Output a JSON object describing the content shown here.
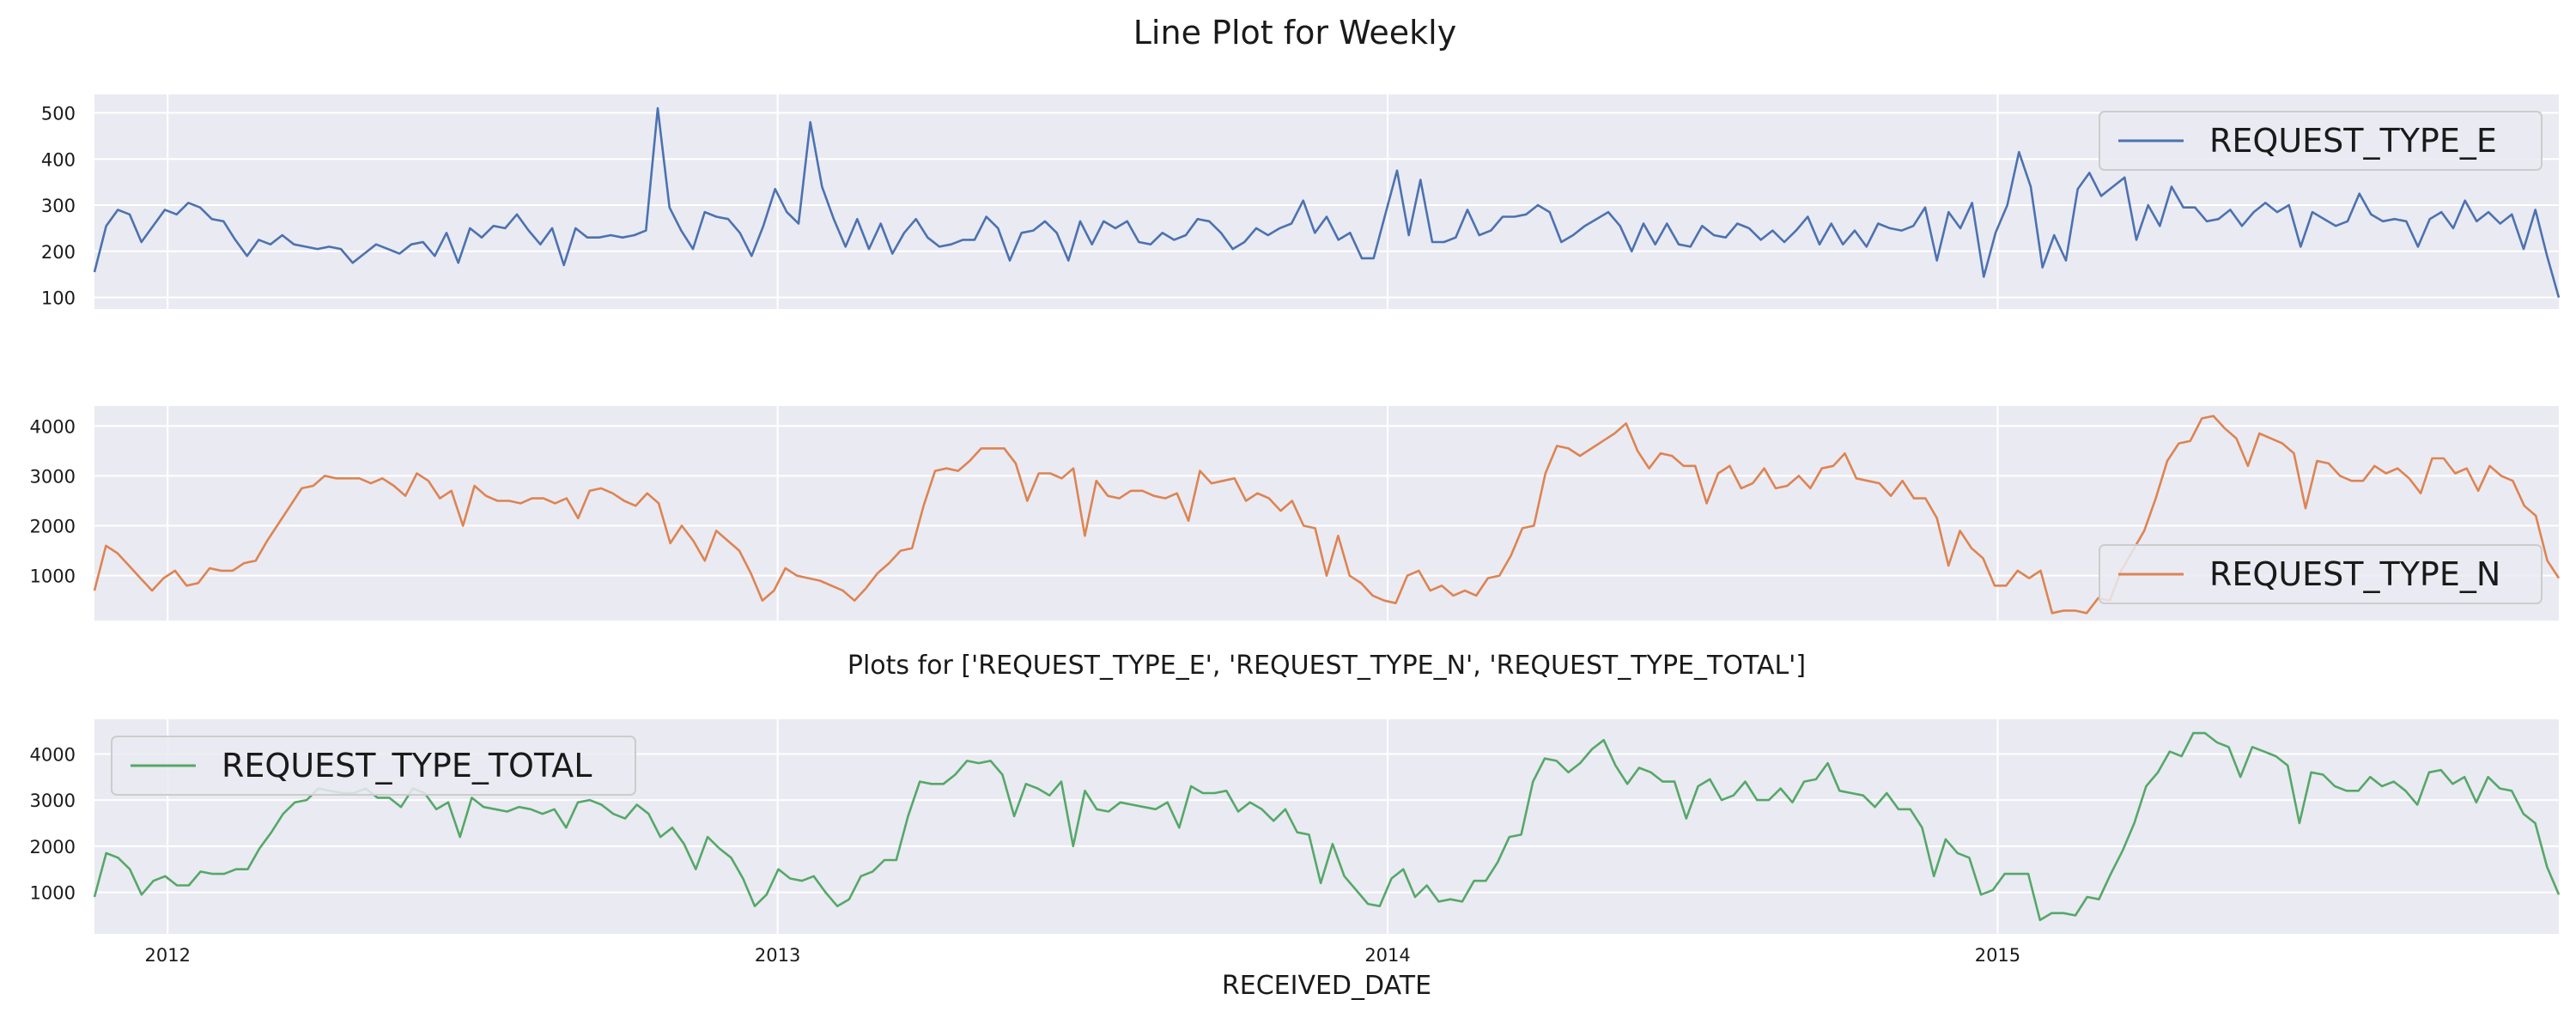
{
  "figure": {
    "title": "Line Plot for Weekly",
    "subtitle": "Plots for ['REQUEST_TYPE_E', 'REQUEST_TYPE_N', 'REQUEST_TYPE_TOTAL']",
    "xlabel": "RECEIVED_DATE",
    "x_ticks": [
      "2012",
      "2013",
      "2014",
      "2015"
    ]
  },
  "colors": {
    "background": "#ffffff",
    "panel": "#eaeaf2",
    "grid": "#ffffff",
    "REQUEST_TYPE_E": "#4c72b0",
    "REQUEST_TYPE_N": "#dd8452",
    "REQUEST_TYPE_TOTAL": "#55a868"
  },
  "chart_data": [
    {
      "type": "line",
      "x_unit": "weekly dates (received date)",
      "x_range": [
        "2011-11-20",
        "2015-11-29"
      ],
      "xlim": [
        2011.88,
        2015.92
      ],
      "series": [
        {
          "name": "REQUEST_TYPE_E",
          "values": [
            155,
            255,
            290,
            280,
            220,
            255,
            290,
            280,
            305,
            295,
            270,
            265,
            225,
            190,
            225,
            215,
            235,
            215,
            210,
            205,
            210,
            205,
            175,
            195,
            215,
            205,
            195,
            215,
            220,
            190,
            240,
            175,
            250,
            230,
            255,
            250,
            280,
            245,
            215,
            250,
            170,
            250,
            230,
            230,
            235,
            230,
            235,
            245,
            510,
            295,
            245,
            205,
            285,
            275,
            270,
            240,
            190,
            255,
            335,
            285,
            260,
            480,
            340,
            270,
            210,
            270,
            205,
            260,
            195,
            240,
            270,
            230,
            210,
            215,
            225,
            225,
            275,
            250,
            180,
            240,
            245,
            265,
            240,
            180,
            265,
            215,
            265,
            250,
            265,
            220,
            215,
            240,
            225,
            235,
            270,
            265,
            240,
            205,
            220,
            250,
            235,
            250,
            260,
            310,
            240,
            275,
            225,
            240,
            185,
            185,
            280,
            375,
            235,
            355,
            220,
            220,
            230,
            290,
            235,
            245,
            275,
            275,
            280,
            300,
            285,
            220,
            235,
            255,
            270,
            285,
            255,
            200,
            260,
            215,
            260,
            215,
            210,
            255,
            235,
            230,
            260,
            250,
            225,
            245,
            220,
            245,
            275,
            215,
            260,
            215,
            245,
            210,
            260,
            250,
            245,
            255,
            295,
            180,
            285,
            250,
            305,
            145,
            240,
            300,
            415,
            340,
            165,
            235,
            180,
            335,
            370,
            320,
            340,
            360,
            225,
            300,
            255,
            340,
            295,
            295,
            265,
            270,
            290,
            255,
            285,
            305,
            285,
            300,
            210,
            285,
            270,
            255,
            265,
            325,
            280,
            265,
            270,
            265,
            210,
            270,
            285,
            250,
            310,
            265,
            285,
            260,
            280,
            205,
            290,
            190,
            100
          ]
        }
      ],
      "yticks": [
        100,
        200,
        300,
        400,
        500
      ],
      "ylim": [
        75,
        540
      ],
      "grid": true,
      "legend_location": "upper right"
    },
    {
      "type": "line",
      "x_unit": "weekly dates (received date)",
      "x_range": [
        "2011-11-20",
        "2015-11-29"
      ],
      "xlim": [
        2011.88,
        2015.92
      ],
      "series": [
        {
          "name": "REQUEST_TYPE_N",
          "values": [
            700,
            1600,
            1450,
            1200,
            950,
            700,
            950,
            1100,
            800,
            850,
            1150,
            1100,
            1100,
            1250,
            1300,
            1700,
            2050,
            2400,
            2750,
            2800,
            3000,
            2950,
            2950,
            2950,
            2850,
            2950,
            2800,
            2600,
            3050,
            2900,
            2550,
            2700,
            2000,
            2800,
            2600,
            2500,
            2500,
            2450,
            2550,
            2550,
            2450,
            2550,
            2150,
            2700,
            2750,
            2650,
            2500,
            2400,
            2650,
            2450,
            1650,
            2000,
            1700,
            1300,
            1900,
            1700,
            1500,
            1050,
            500,
            700,
            1150,
            1000,
            950,
            900,
            800,
            700,
            500,
            750,
            1050,
            1250,
            1500,
            1550,
            2400,
            3100,
            3150,
            3100,
            3300,
            3550,
            3550,
            3550,
            3250,
            2500,
            3050,
            3050,
            2950,
            3150,
            1800,
            2900,
            2600,
            2550,
            2700,
            2700,
            2600,
            2550,
            2650,
            2100,
            3100,
            2850,
            2900,
            2950,
            2500,
            2650,
            2550,
            2300,
            2500,
            2000,
            1950,
            1000,
            1800,
            1000,
            850,
            600,
            500,
            450,
            1000,
            1100,
            700,
            800,
            600,
            700,
            600,
            950,
            1000,
            1400,
            1950,
            2000,
            3050,
            3600,
            3550,
            3400,
            3550,
            3700,
            3850,
            4050,
            3500,
            3150,
            3450,
            3400,
            3200,
            3200,
            2450,
            3050,
            3200,
            2750,
            2850,
            3150,
            2750,
            2800,
            3000,
            2750,
            3150,
            3200,
            3450,
            2950,
            2900,
            2850,
            2600,
            2900,
            2550,
            2550,
            2150,
            1200,
            1900,
            1550,
            1350,
            800,
            800,
            1100,
            950,
            1100,
            250,
            300,
            300,
            250,
            550,
            500,
            1100,
            1500,
            1900,
            2550,
            3300,
            3650,
            3700,
            4150,
            4200,
            3950,
            3750,
            3200,
            3850,
            3750,
            3650,
            3450,
            2350,
            3300,
            3250,
            3000,
            2900,
            2900,
            3200,
            3050,
            3150,
            2950,
            2650,
            3350,
            3350,
            3050,
            3150,
            2700,
            3200,
            3000,
            2900,
            2400,
            2200,
            1300,
            950
          ]
        }
      ],
      "yticks": [
        1000,
        2000,
        3000,
        4000
      ],
      "ylim": [
        100,
        4400
      ],
      "grid": true,
      "legend_location": "lower right"
    },
    {
      "type": "line",
      "x_unit": "weekly dates (received date)",
      "x_range": [
        "2011-11-20",
        "2015-11-29"
      ],
      "xlim": [
        2011.88,
        2015.92
      ],
      "series": [
        {
          "name": "REQUEST_TYPE_TOTAL",
          "values": [
            900,
            1850,
            1750,
            1500,
            950,
            1250,
            1350,
            1150,
            1150,
            1450,
            1400,
            1400,
            1500,
            1500,
            1950,
            2300,
            2700,
            2950,
            3000,
            3250,
            3200,
            3150,
            3150,
            3250,
            3050,
            3050,
            2850,
            3250,
            3150,
            2800,
            2950,
            2200,
            3050,
            2850,
            2800,
            2750,
            2850,
            2800,
            2700,
            2800,
            2400,
            2950,
            3000,
            2900,
            2700,
            2600,
            2900,
            2700,
            2200,
            2400,
            2050,
            1500,
            2200,
            1950,
            1750,
            1300,
            700,
            950,
            1500,
            1300,
            1250,
            1350,
            1000,
            700,
            850,
            1350,
            1450,
            1700,
            1700,
            2650,
            3400,
            3350,
            3350,
            3550,
            3850,
            3800,
            3850,
            3550,
            2650,
            3350,
            3250,
            3100,
            3400,
            2000,
            3200,
            2800,
            2750,
            2950,
            2900,
            2850,
            2800,
            2950,
            2400,
            3300,
            3150,
            3150,
            3200,
            2750,
            2950,
            2800,
            2550,
            2800,
            2300,
            2250,
            1200,
            2050,
            1350,
            1050,
            750,
            700,
            1300,
            1500,
            900,
            1150,
            800,
            850,
            800,
            1250,
            1250,
            1650,
            2200,
            2250,
            3400,
            3900,
            3850,
            3600,
            3800,
            4100,
            4300,
            3750,
            3350,
            3700,
            3600,
            3400,
            3400,
            2600,
            3300,
            3450,
            3000,
            3100,
            3400,
            3000,
            3000,
            3250,
            2950,
            3400,
            3450,
            3800,
            3200,
            3150,
            3100,
            2850,
            3150,
            2800,
            2800,
            2400,
            1350,
            2150,
            1850,
            1750,
            950,
            1050,
            1400,
            1400,
            1400,
            400,
            550,
            550,
            500,
            900,
            850,
            1400,
            1900,
            2500,
            3300,
            3600,
            4050,
            3950,
            4450,
            4450,
            4250,
            4150,
            3500,
            4150,
            4050,
            3950,
            3750,
            2500,
            3600,
            3550,
            3300,
            3200,
            3200,
            3500,
            3300,
            3400,
            3200,
            2900,
            3600,
            3650,
            3350,
            3500,
            2950,
            3500,
            3250,
            3200,
            2700,
            2500,
            1550,
            950
          ]
        }
      ],
      "yticks": [
        1000,
        2000,
        3000,
        4000
      ],
      "ylim": [
        100,
        4750
      ],
      "grid": true,
      "legend_location": "upper left"
    }
  ]
}
